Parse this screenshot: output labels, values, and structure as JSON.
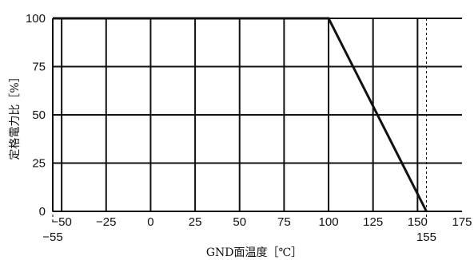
{
  "chart_data": {
    "type": "line",
    "xlabel": "GND面温度［℃］",
    "ylabel": "定格電力比［%］",
    "x_ticks": [
      "−50",
      "−25",
      "0",
      "25",
      "50",
      "75",
      "100",
      "125",
      "150",
      "175"
    ],
    "x_tick_values": [
      -50,
      -25,
      0,
      25,
      50,
      75,
      100,
      125,
      150,
      175
    ],
    "y_ticks": [
      "0",
      "25",
      "50",
      "75",
      "100"
    ],
    "y_tick_values": [
      0,
      25,
      50,
      75,
      100
    ],
    "xlim": [
      -55,
      175
    ],
    "ylim": [
      0,
      100
    ],
    "grid": true,
    "series": [
      {
        "x": [
          -55,
          100,
          155
        ],
        "y": [
          100,
          100,
          0
        ]
      }
    ],
    "reference_lines": [
      {
        "x": -55,
        "label": "−55",
        "style": "dashed"
      },
      {
        "x": 155,
        "label": "155",
        "style": "dashed"
      }
    ],
    "colors": {
      "line": "#111111",
      "grid": "#111111"
    }
  }
}
